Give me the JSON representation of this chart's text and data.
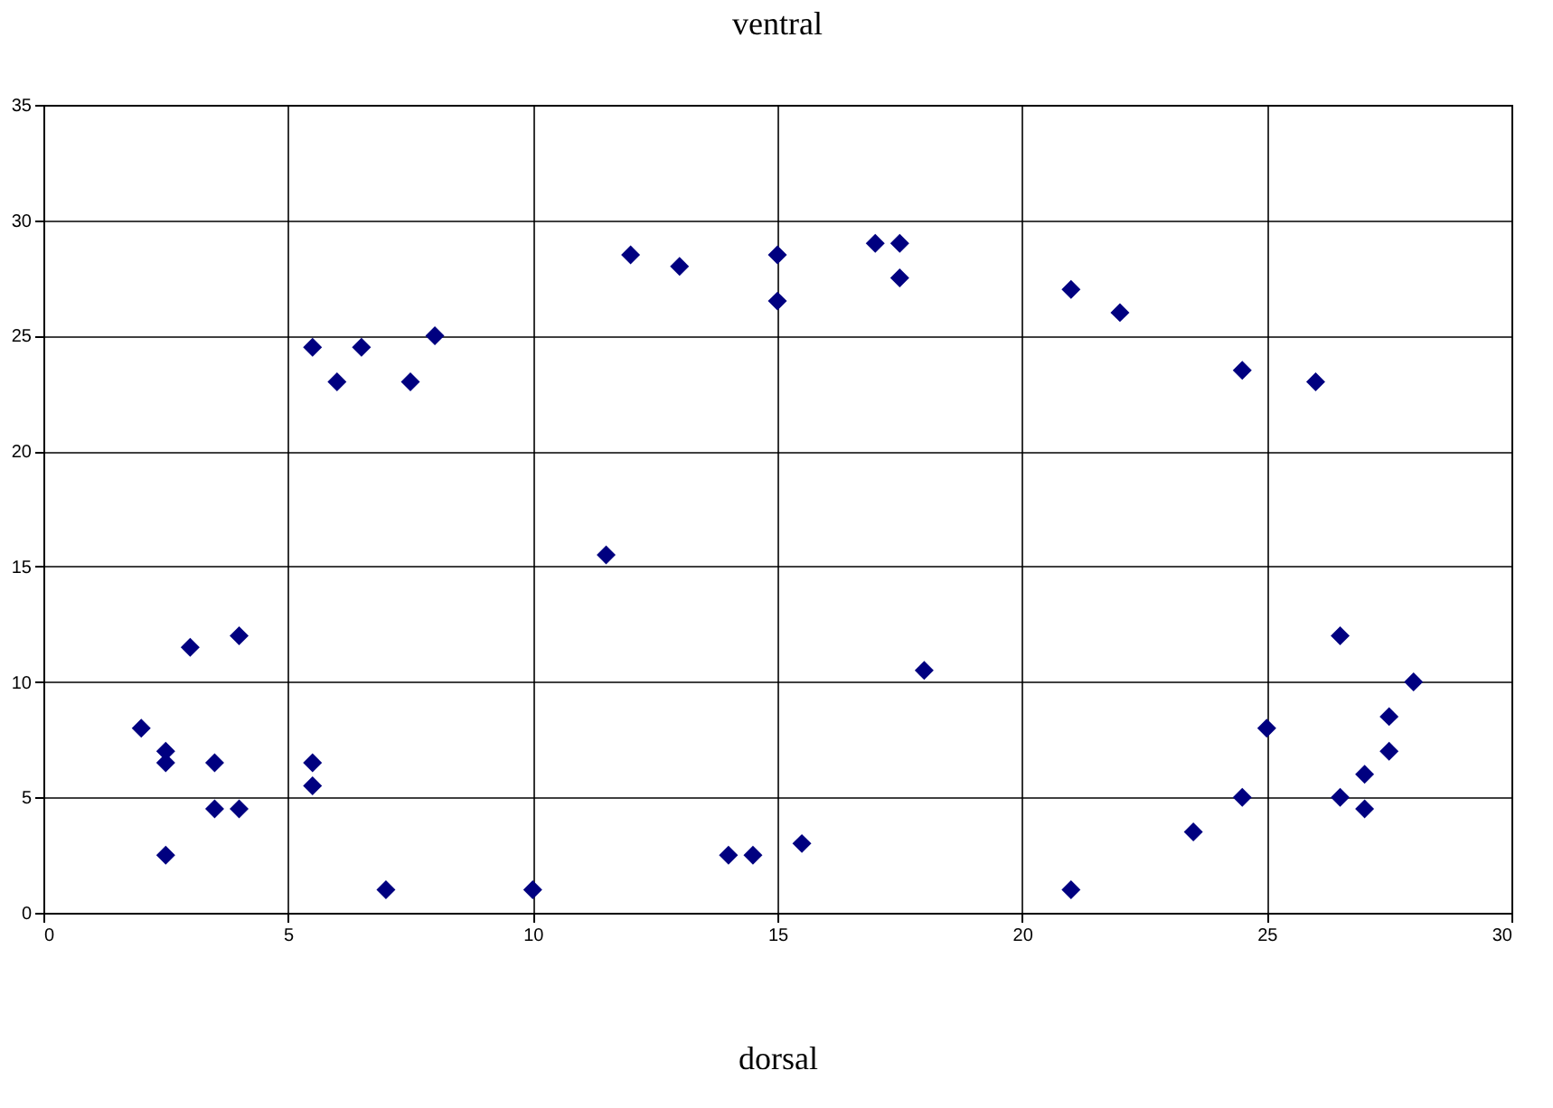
{
  "chart_data": {
    "type": "scatter",
    "title": "ventral",
    "xlabel": "dorsal",
    "x": [
      2,
      2.5,
      2.5,
      2.5,
      3,
      3.5,
      3.5,
      4,
      4,
      5.5,
      5.5,
      5.5,
      6,
      6.5,
      7,
      7.5,
      8,
      10,
      11.5,
      12,
      13,
      14,
      14.5,
      15,
      15,
      15.5,
      17,
      17.5,
      17.5,
      18,
      21,
      21,
      22,
      23.5,
      24.5,
      24.5,
      25,
      26,
      26.5,
      26.5,
      27,
      27,
      27.5,
      27.5,
      28
    ],
    "series": [
      {
        "color": "#000080",
        "values": [
          8,
          7,
          6.5,
          2.5,
          11.5,
          6.5,
          4.5,
          4.5,
          12,
          6.5,
          5.5,
          24.5,
          23,
          24.5,
          1,
          23,
          25,
          1,
          15.5,
          28.5,
          28,
          2.5,
          2.5,
          28.5,
          26.5,
          3,
          29,
          29,
          27.5,
          10.5,
          27,
          1,
          26,
          3.5,
          23.5,
          5,
          8,
          23,
          12,
          5,
          6,
          4.5,
          8.5,
          7,
          10
        ]
      }
    ],
    "xlim": [
      0,
      30
    ],
    "xticks": [
      0,
      5,
      10,
      15,
      20,
      25,
      30
    ],
    "ylim": [
      0,
      35
    ],
    "yticks": [
      0,
      5,
      10,
      15,
      20,
      25,
      30,
      35
    ],
    "grid": true,
    "marker": "diamond",
    "legend": false
  }
}
